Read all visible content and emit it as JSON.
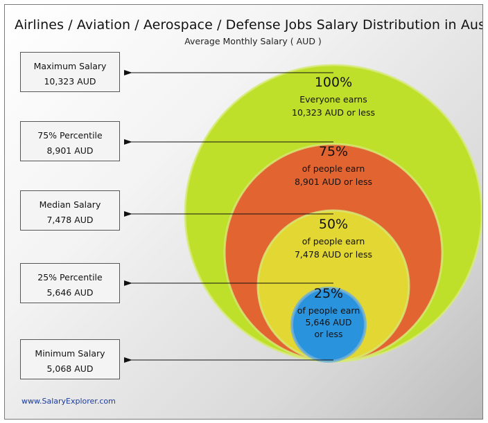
{
  "title": "Airlines / Aviation / Aerospace / Defense Jobs Salary Distribution in Australia",
  "subtitle": "Average Monthly Salary ( AUD )",
  "footer": "www.SalaryExplorer.com",
  "chart_data": {
    "type": "nested-circles",
    "unit": "AUD",
    "stats": [
      {
        "label": "Maximum Salary",
        "value": "10,323 AUD",
        "amount": 10323
      },
      {
        "label": "75% Percentile",
        "value": "8,901 AUD",
        "amount": 8901
      },
      {
        "label": "Median Salary",
        "value": "7,478 AUD",
        "amount": 7478
      },
      {
        "label": "25% Percentile",
        "value": "5,646 AUD",
        "amount": 5646
      },
      {
        "label": "Minimum Salary",
        "value": "5,068 AUD",
        "amount": 5068
      }
    ],
    "circles": [
      {
        "pct": "100%",
        "line1": "Everyone earns",
        "line2": "10,323 AUD or less",
        "line3": "",
        "color": "#bfe02a"
      },
      {
        "pct": "75%",
        "line1": "of people earn",
        "line2": "8,901 AUD or less",
        "line3": "",
        "color": "#e26430"
      },
      {
        "pct": "50%",
        "line1": "of people earn",
        "line2": "7,478 AUD or less",
        "line3": "",
        "color": "#e3d733"
      },
      {
        "pct": "25%",
        "line1": "of people earn",
        "line2": "5,646 AUD",
        "line3": "or less",
        "color": "#2a93dd"
      }
    ]
  }
}
